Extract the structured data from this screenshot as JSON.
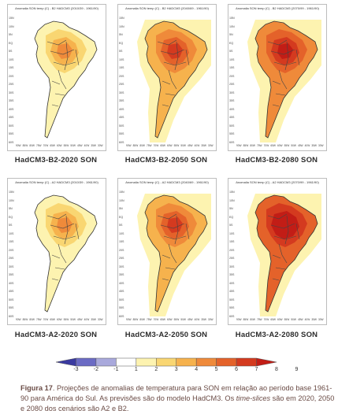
{
  "panels": [
    {
      "header": "Anomalia SON temp (C) - B2 HADCM3 (2010/39 - 1961/90)",
      "caption": "HadCM3-B2-2020 SON",
      "level": 1
    },
    {
      "header": "Anomalia SON temp (C) - B2 HADCM3 (2040/69 - 1961/90)",
      "caption": "HadCM3-B2-2050 SON",
      "level": 3
    },
    {
      "header": "Anomalia SON temp (C) - B2 HADCM3 (2070/99 - 1961/90)",
      "caption": "HadCM3-B2-2080 SON",
      "level": 4
    },
    {
      "header": "Anomalia SON temp (C) - A2 HADCM3 (2010/39 - 1961/90)",
      "caption": "HadCM3-A2-2020 SON",
      "level": 1
    },
    {
      "header": "Anomalia SON temp (C) - A2 HADCM3 (2040/69 - 1961/90)",
      "caption": "HadCM3-A2-2050 SON",
      "level": 3
    },
    {
      "header": "Anomalia SON temp (C) - A2 HADCM3 (2070/99 - 1961/90)",
      "caption": "HadCM3-A2-2080 SON",
      "level": 5
    }
  ],
  "lat_labels": [
    "15N",
    "10N",
    "5N",
    "EQ",
    "5S",
    "10S",
    "15S",
    "20S",
    "25S",
    "30S",
    "35S",
    "40S",
    "45S",
    "50S",
    "55S",
    "60S"
  ],
  "lon_labels": [
    "90W",
    "85W",
    "80W",
    "75W",
    "70W",
    "65W",
    "60W",
    "55W",
    "50W",
    "45W",
    "40W",
    "35W",
    "30W"
  ],
  "colorbar": {
    "labels": [
      "-3",
      "-2",
      "-1",
      "1",
      "2",
      "3",
      "4",
      "5",
      "6",
      "7",
      "8",
      "9"
    ],
    "colors": [
      "#3a3aa0",
      "#6b6bc4",
      "#a9a9dc",
      "#ffffff",
      "#fdf3b0",
      "#f9d672",
      "#f6b24d",
      "#ef8a3a",
      "#e4622a",
      "#d43a1f",
      "#c21d16"
    ]
  },
  "figure_caption": {
    "label": "Figura 17",
    "text_part1": ". Projeções de anomalias de temperatura para SON em relação ao período base 1961-90 para América do Sul. As previsões são do modelo HadCM3. Os ",
    "italic": "time-slices",
    "text_part2": " são em 2020, 2050 e 2080 dos cenários são A2 e B2."
  }
}
